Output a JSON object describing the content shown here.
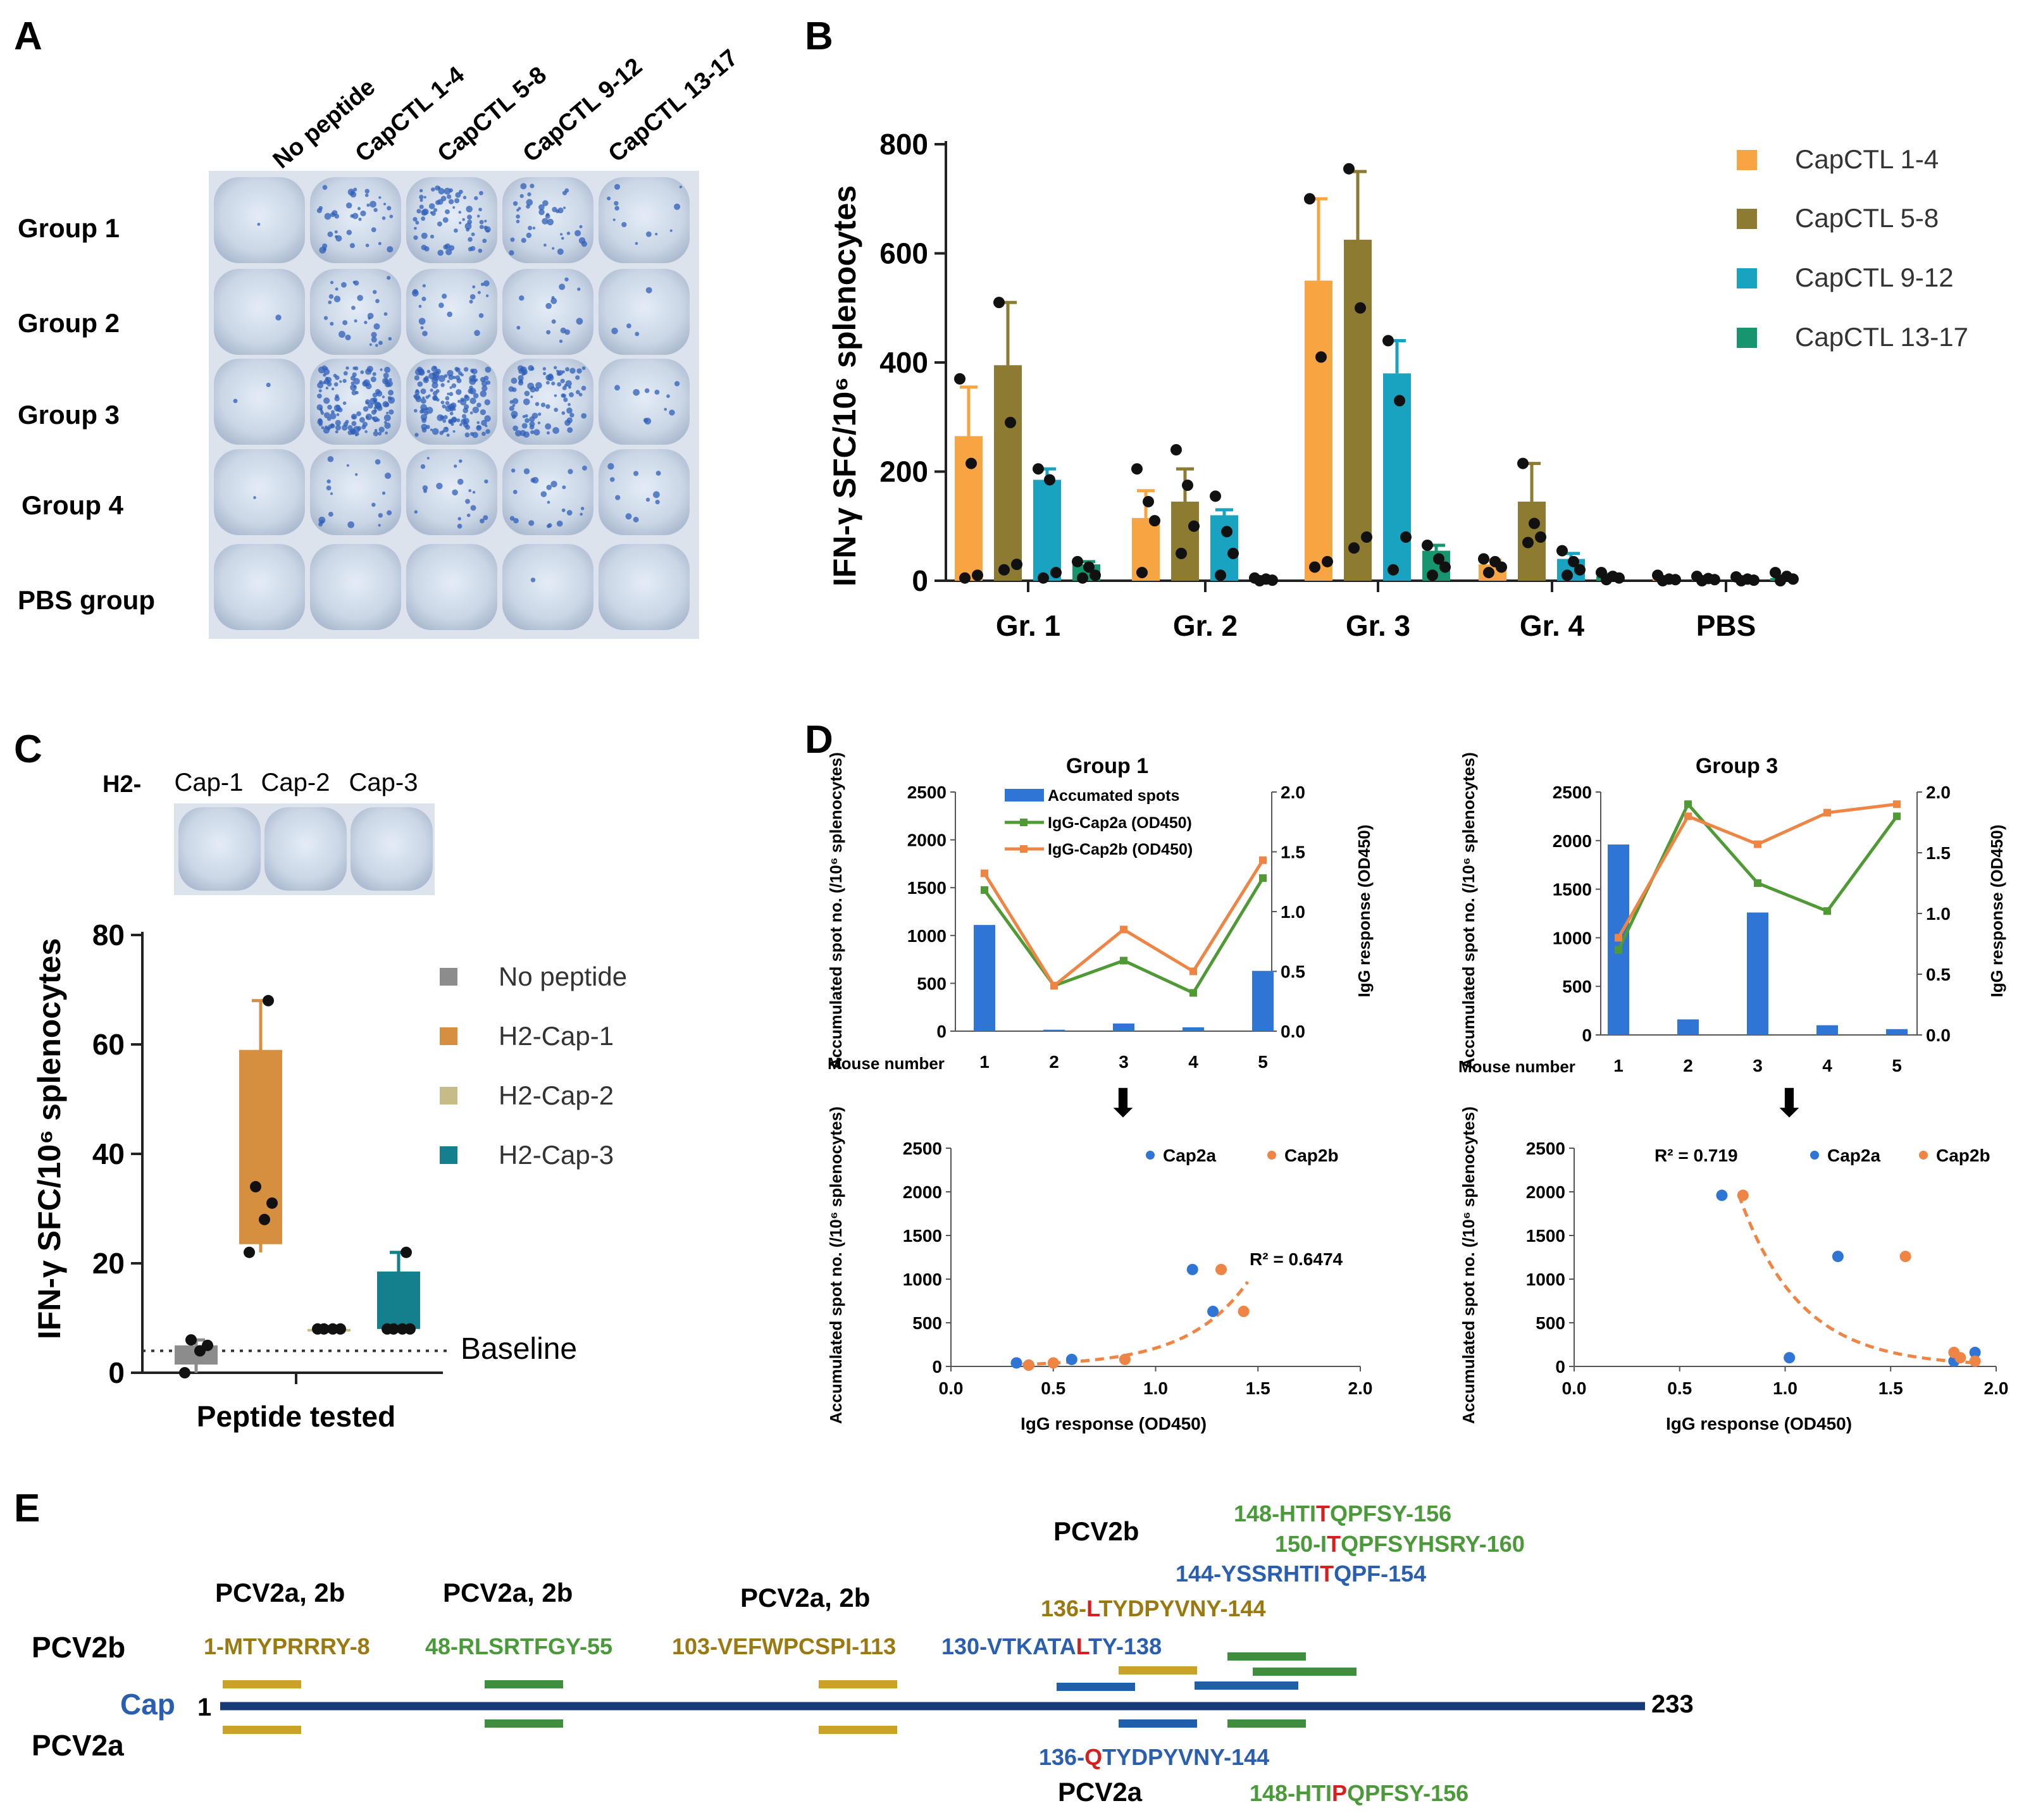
{
  "panels": {
    "a": "A",
    "b": "B",
    "c": "C",
    "d": "D",
    "e": "E"
  },
  "colors": {
    "cap14": "#F7A442",
    "cap58": "#8E7B32",
    "cap912": "#1AA3C0",
    "cap1317": "#16956E",
    "nopep": "#8C8C8C",
    "h2cap1": "#D58F3E",
    "h2cap2": "#C7BB87",
    "h2cap3": "#14808E",
    "blue_bar": "#2E75D6",
    "green_line": "#4F9A34",
    "orange_line": "#EE8545",
    "yellow_ep": "#C9A227",
    "green_ep": "#3E8E3E",
    "blue_ep": "#1F5FAA",
    "navy": "#183A78",
    "red": "#D62020",
    "olive_text": "#9A7A10",
    "green_text": "#4A9A3A",
    "blue_text": "#2A5FB0"
  },
  "panel_a": {
    "columns": [
      "No peptide",
      "CapCTL 1-4",
      "CapCTL 5-8",
      "CapCTL 9-12",
      "CapCTL 13-17"
    ],
    "rows": [
      "Group 1",
      "Group 2",
      "Group 3",
      "Group 4",
      "PBS group"
    ]
  },
  "panel_c_image": {
    "prefix": "H2-",
    "labels": [
      "Cap-1",
      "Cap-2",
      "Cap-3"
    ]
  },
  "chart_data": [
    {
      "id": "B",
      "type": "bar",
      "ylabel": "IFN-γ SFC/10⁶ splenocytes",
      "ylim": [
        0,
        800
      ],
      "yticks": [
        0,
        200,
        400,
        600,
        800
      ],
      "categories": [
        "Gr. 1",
        "Gr. 2",
        "Gr. 3",
        "Gr. 4",
        "PBS"
      ],
      "series": [
        {
          "name": "CapCTL 1-4",
          "color_key": "cap14",
          "values": [
            265,
            115,
            550,
            30,
            3
          ],
          "errors": [
            90,
            50,
            150,
            8,
            3
          ],
          "points": [
            [
              370,
              215,
              10,
              5
            ],
            [
              205,
              145,
              110,
              15
            ],
            [
              700,
              410,
              35,
              25
            ],
            [
              40,
              35,
              25,
              15
            ],
            [
              10,
              3,
              2,
              0
            ]
          ]
        },
        {
          "name": "CapCTL 5-8",
          "color_key": "cap58",
          "values": [
            395,
            145,
            625,
            145,
            3
          ],
          "errors": [
            115,
            60,
            125,
            70,
            3
          ],
          "points": [
            [
              510,
              290,
              30,
              20
            ],
            [
              240,
              175,
              100,
              50
            ],
            [
              755,
              500,
              80,
              60
            ],
            [
              215,
              105,
              80,
              70
            ],
            [
              8,
              4,
              2,
              0
            ]
          ]
        },
        {
          "name": "CapCTL 9-12",
          "color_key": "cap912",
          "values": [
            185,
            120,
            380,
            40,
            3
          ],
          "errors": [
            20,
            10,
            60,
            10,
            2
          ],
          "points": [
            [
              205,
              185,
              15,
              5
            ],
            [
              155,
              90,
              50,
              10
            ],
            [
              440,
              330,
              80,
              20
            ],
            [
              55,
              35,
              20,
              10
            ],
            [
              7,
              3,
              1,
              0
            ]
          ]
        },
        {
          "name": "CapCTL 13-17",
          "color_key": "cap1317",
          "values": [
            30,
            3,
            55,
            8,
            5
          ],
          "errors": [
            5,
            3,
            10,
            4,
            4
          ],
          "points": [
            [
              35,
              25,
              10,
              5
            ],
            [
              5,
              3,
              1,
              0
            ],
            [
              65,
              40,
              25,
              10
            ],
            [
              15,
              8,
              5,
              2
            ],
            [
              15,
              8,
              3,
              0
            ]
          ]
        }
      ],
      "legend_position": "top-right"
    },
    {
      "id": "C",
      "type": "bar",
      "ylabel": "IFN-γ SFC/10⁶ splenocytes",
      "xlabel": "Peptide tested",
      "ylim": [
        0,
        80
      ],
      "yticks": [
        0,
        20,
        40,
        60,
        80
      ],
      "baseline": {
        "value": 4,
        "label": "Baseline"
      },
      "series": [
        {
          "name": "No peptide",
          "color_key": "nopep",
          "box": [
            1.5,
            5
          ],
          "whisker": [
            0,
            6
          ],
          "points": [
            0,
            4,
            5,
            6
          ]
        },
        {
          "name": "H2-Cap-1",
          "color_key": "h2cap1",
          "box": [
            23.5,
            59
          ],
          "whisker": [
            22,
            68
          ],
          "points": [
            22,
            28,
            31,
            34,
            68
          ]
        },
        {
          "name": "H2-Cap-2",
          "color_key": "h2cap2",
          "box": [
            8,
            8
          ],
          "whisker": [
            8,
            8
          ],
          "points": [
            8,
            8,
            8,
            8
          ]
        },
        {
          "name": "H2-Cap-3",
          "color_key": "h2cap3",
          "box": [
            8,
            18.5
          ],
          "whisker": [
            8,
            22
          ],
          "points": [
            8,
            8,
            8,
            8,
            22
          ]
        }
      ],
      "legend_position": "right"
    },
    {
      "id": "D1",
      "type": "bar+line",
      "title": "Group 1",
      "xlabel": "Mouse number",
      "x": [
        1,
        2,
        3,
        4,
        5
      ],
      "ylabel_left": "Accumulated spot no. (/10⁶ splenocytes)",
      "ylabel_right": "IgG response (OD450)",
      "ylim_left": [
        0,
        2500
      ],
      "yticks_left": [
        0,
        500,
        1000,
        1500,
        2000,
        2500
      ],
      "ylim_right": [
        0,
        2.0
      ],
      "yticks_right": [
        "0.0",
        "0.5",
        "1.0",
        "1.5",
        "2.0"
      ],
      "bars": {
        "name": "Accumated spots",
        "values": [
          1110,
          15,
          80,
          40,
          630
        ]
      },
      "lines": [
        {
          "name": "IgG-Cap2a (OD450)",
          "color_key": "green_line",
          "values": [
            1.18,
            0.38,
            0.59,
            0.32,
            1.28
          ]
        },
        {
          "name": "IgG-Cap2b (OD450)",
          "color_key": "orange_line",
          "values": [
            1.32,
            0.38,
            0.85,
            0.5,
            1.43
          ]
        }
      ]
    },
    {
      "id": "D2",
      "type": "bar+line",
      "title": "Group 3",
      "xlabel": "Mouse number",
      "x": [
        1,
        2,
        3,
        4,
        5
      ],
      "ylim_left": [
        0,
        2500
      ],
      "yticks_left": [
        0,
        500,
        1000,
        1500,
        2000,
        2500
      ],
      "ylim_right": [
        0,
        2.0
      ],
      "yticks_right": [
        "0.0",
        "0.5",
        "1.0",
        "1.5",
        "2.0"
      ],
      "bars": {
        "values": [
          1960,
          160,
          1260,
          100,
          60
        ]
      },
      "lines": [
        {
          "name": "IgG-Cap2a (OD450)",
          "color_key": "green_line",
          "values": [
            0.7,
            1.9,
            1.25,
            1.02,
            1.8
          ]
        },
        {
          "name": "IgG-Cap2b (OD450)",
          "color_key": "orange_line",
          "values": [
            0.8,
            1.8,
            1.57,
            1.83,
            1.9
          ]
        }
      ]
    },
    {
      "id": "D3",
      "type": "scatter",
      "xlabel": "IgG response (OD450)",
      "ylabel": "Accumulated spot no. (/10⁶ splenocytes)",
      "xlim": [
        0,
        2.0
      ],
      "xticks": [
        "0.0",
        "0.5",
        "1.0",
        "1.5",
        "2.0"
      ],
      "ylim": [
        0,
        2500
      ],
      "yticks": [
        0,
        500,
        1000,
        1500,
        2000,
        2500
      ],
      "series": [
        {
          "name": "Cap2a",
          "color_key": "blue_bar",
          "points": [
            [
              1.18,
              1110
            ],
            [
              0.32,
              40
            ],
            [
              0.59,
              80
            ],
            [
              0.38,
              15
            ],
            [
              1.28,
              630
            ]
          ]
        },
        {
          "name": "Cap2b",
          "color_key": "orange_line",
          "points": [
            [
              1.32,
              1110
            ],
            [
              0.5,
              40
            ],
            [
              0.85,
              80
            ],
            [
              0.38,
              15
            ],
            [
              1.43,
              630
            ]
          ]
        }
      ],
      "r2_label": "R² = 0.6474",
      "trend": {
        "form": "exp",
        "a": 7,
        "b": 3.4,
        "x_range": [
          0.35,
          1.45
        ]
      }
    },
    {
      "id": "D4",
      "type": "scatter",
      "xlabel": "IgG response (OD450)",
      "ylabel": "Accumulated spot no. (/10⁶ splenocytes)",
      "xlim": [
        0,
        2.0
      ],
      "xticks": [
        "0.0",
        "0.5",
        "1.0",
        "1.5",
        "2.0"
      ],
      "ylim": [
        0,
        2500
      ],
      "yticks": [
        0,
        500,
        1000,
        1500,
        2000,
        2500
      ],
      "series": [
        {
          "name": "Cap2a",
          "color_key": "blue_bar",
          "points": [
            [
              0.7,
              1960
            ],
            [
              1.9,
              160
            ],
            [
              1.25,
              1260
            ],
            [
              1.02,
              100
            ],
            [
              1.8,
              60
            ]
          ]
        },
        {
          "name": "Cap2b",
          "color_key": "orange_line",
          "points": [
            [
              0.8,
              1960
            ],
            [
              1.8,
              160
            ],
            [
              1.57,
              1260
            ],
            [
              1.83,
              100
            ],
            [
              1.9,
              60
            ]
          ]
        }
      ],
      "r2_label": "R² = 0.719",
      "trend": {
        "form": "exp",
        "a": 29000,
        "b": -3.45,
        "x_range": [
          0.78,
          1.9
        ]
      }
    }
  ],
  "panel_d_arrows": [
    "⬇",
    "⬇"
  ],
  "panel_e": {
    "cap_label": "Cap",
    "start": "1",
    "end": "233",
    "row_top": "PCV2b",
    "row_bottom": "PCV2a",
    "group_labels": [
      "PCV2a, 2b",
      "PCV2a, 2b",
      "PCV2a, 2b",
      "PCV2b",
      "PCV2a"
    ],
    "epitopes": [
      {
        "id": "e1",
        "text": "1-MTYPRRRY-8",
        "color_key": "olive_text"
      },
      {
        "id": "e2",
        "text": "48-RLSRTFGY-55",
        "color_key": "green_text"
      },
      {
        "id": "e3",
        "text": "103-VEFWPCSPI-113",
        "color_key": "olive_text"
      },
      {
        "id": "e4",
        "segments": [
          [
            "130-VTKATA",
            "blue_text"
          ],
          [
            "L",
            "red"
          ],
          [
            "TY-138",
            "blue_text"
          ]
        ]
      },
      {
        "id": "e5",
        "segments": [
          [
            "136-",
            "olive_text"
          ],
          [
            "L",
            "red"
          ],
          [
            "TYDPYVNY-144",
            "olive_text"
          ]
        ]
      },
      {
        "id": "e6",
        "segments": [
          [
            "144-YSSRHTI",
            "blue_text"
          ],
          [
            "T",
            "red"
          ],
          [
            "QPF-154",
            "blue_text"
          ]
        ]
      },
      {
        "id": "e7",
        "segments": [
          [
            "150-I",
            "green_text"
          ],
          [
            "T",
            "red"
          ],
          [
            "QPFSYHSRY-160",
            "green_text"
          ]
        ]
      },
      {
        "id": "e8",
        "segments": [
          [
            "148-HTI",
            "green_text"
          ],
          [
            "T",
            "red"
          ],
          [
            "QPFSY-156",
            "green_text"
          ]
        ]
      },
      {
        "id": "e9",
        "segments": [
          [
            "136-",
            "blue_text"
          ],
          [
            "Q",
            "red"
          ],
          [
            "TYDPYVNY-144",
            "blue_text"
          ]
        ]
      },
      {
        "id": "e10",
        "segments": [
          [
            "148-HTI",
            "green_text"
          ],
          [
            "P",
            "red"
          ],
          [
            "QPFSY-156",
            "green_text"
          ]
        ]
      }
    ]
  }
}
